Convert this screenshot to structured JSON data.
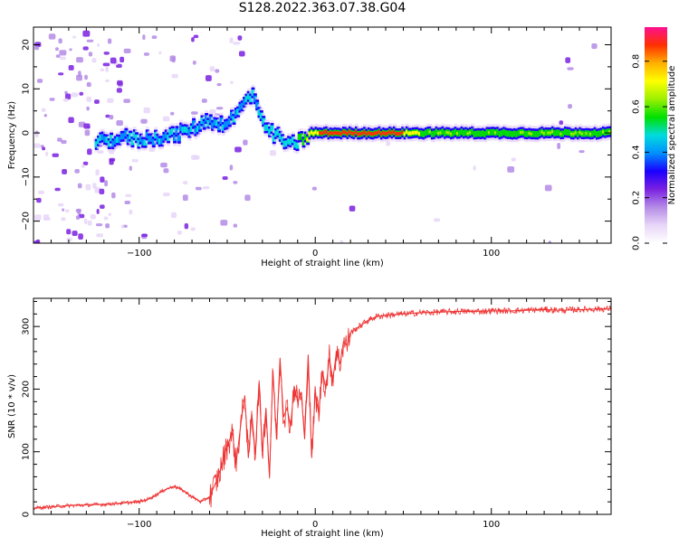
{
  "title": "S128.2022.363.07.38.G04",
  "chart_data": [
    {
      "type": "heatmap",
      "xlabel": "Height of straight line (km)",
      "ylabel": "Frequency (Hz)",
      "xlim": [
        -160,
        168
      ],
      "ylim": [
        -25,
        24
      ],
      "xticks": [
        -100,
        0,
        100
      ],
      "yticks": [
        -20,
        -10,
        0,
        10,
        20
      ],
      "colorbar": {
        "label": "Normalized spectral amplitude",
        "range": [
          0,
          0.95
        ],
        "ticks": [
          "0.0",
          "0.2",
          "0.4",
          "0.6",
          "0.8"
        ]
      },
      "ridge": {
        "x": [
          -120,
          -110,
          -100,
          -90,
          -80,
          -70,
          -60,
          -55,
          -50,
          -45,
          -40,
          -35,
          -30,
          -25,
          -20,
          -15,
          -10,
          -5,
          0,
          20,
          40,
          60,
          80,
          100,
          120,
          140,
          168
        ],
        "y": [
          -2,
          -1,
          -1.5,
          -1,
          -0.5,
          1,
          3,
          2,
          2.5,
          4,
          7,
          9,
          2,
          0,
          -1,
          -3,
          -2,
          -1,
          0,
          0,
          0,
          0,
          0,
          0,
          0,
          0,
          0
        ]
      },
      "colormap": [
        "#ffffff",
        "#e8d6f8",
        "#b48be6",
        "#7a20e0",
        "#1a00ff",
        "#0090ff",
        "#00dcdc",
        "#00e000",
        "#9cf000",
        "#ffff00",
        "#ffb000",
        "#ff3000",
        "#ff1090"
      ]
    },
    {
      "type": "line",
      "xlabel": "Height of straight line (km)",
      "ylabel": "SNR (10 * v/v)",
      "xlim": [
        -160,
        168
      ],
      "ylim": [
        0,
        345
      ],
      "xticks": [
        -100,
        0,
        100
      ],
      "yticks": [
        0,
        100,
        200,
        300
      ],
      "color": "#ee3333",
      "x": [
        -160,
        -150,
        -140,
        -130,
        -120,
        -110,
        -100,
        -95,
        -90,
        -85,
        -80,
        -75,
        -70,
        -65,
        -60,
        -55,
        -50,
        -47,
        -45,
        -42,
        -40,
        -38,
        -36,
        -34,
        -32,
        -30,
        -28,
        -26,
        -24,
        -22,
        -20,
        -18,
        -16,
        -14,
        -12,
        -10,
        -8,
        -6,
        -4,
        -2,
        0,
        2,
        4,
        6,
        8,
        10,
        12,
        14,
        16,
        18,
        20,
        25,
        30,
        35,
        40,
        50,
        60,
        70,
        80,
        90,
        100,
        110,
        120,
        130,
        140,
        150,
        160,
        168
      ],
      "y": [
        10,
        12,
        14,
        15,
        16,
        18,
        20,
        24,
        32,
        40,
        45,
        38,
        28,
        20,
        28,
        60,
        110,
        130,
        80,
        150,
        190,
        90,
        160,
        95,
        210,
        100,
        170,
        60,
        230,
        120,
        250,
        155,
        170,
        140,
        205,
        180,
        195,
        120,
        255,
        90,
        195,
        160,
        230,
        200,
        250,
        215,
        260,
        240,
        275,
        270,
        290,
        300,
        310,
        316,
        318,
        320,
        322,
        323,
        324,
        324,
        325,
        325,
        326,
        327,
        326,
        327,
        328,
        328
      ]
    }
  ]
}
